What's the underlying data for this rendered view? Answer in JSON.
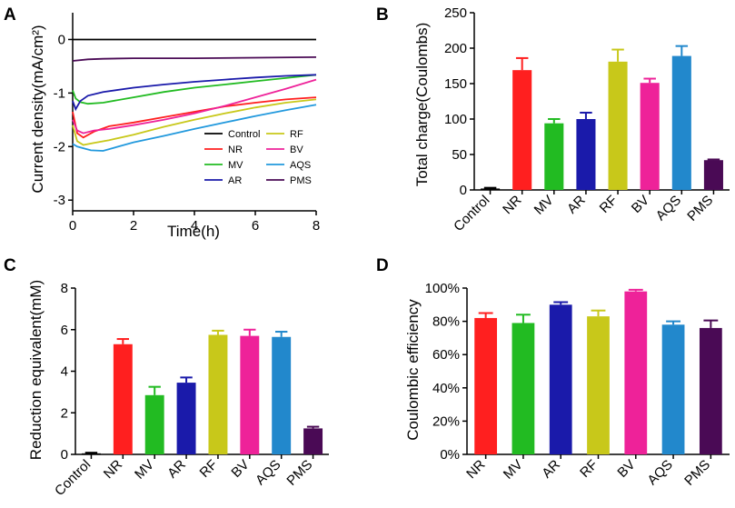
{
  "chart_data": [
    {
      "panel": "A",
      "type": "line",
      "xlabel": "Time(h)",
      "ylabel": "Current density(mA/cm²)",
      "xlim": [
        0,
        8
      ],
      "ylim": [
        -3.2,
        0.5
      ],
      "xticks": [
        0,
        2,
        4,
        6,
        8
      ],
      "yticks": [
        0,
        -1,
        -2,
        -3
      ],
      "legend_position": "bottom-right",
      "series": [
        {
          "name": "Control",
          "color": "#000000",
          "x": [
            0,
            1,
            2,
            4,
            6,
            8
          ],
          "y": [
            0,
            0,
            0,
            0,
            0,
            0
          ]
        },
        {
          "name": "NR",
          "color": "#ff1f1f",
          "x": [
            0,
            0.15,
            0.35,
            0.7,
            1.2,
            2,
            3,
            4,
            5,
            6,
            7,
            8
          ],
          "y": [
            -1.35,
            -1.75,
            -1.83,
            -1.72,
            -1.62,
            -1.55,
            -1.45,
            -1.35,
            -1.25,
            -1.18,
            -1.12,
            -1.08
          ]
        },
        {
          "name": "MV",
          "color": "#22bb22",
          "x": [
            0,
            0.1,
            0.25,
            0.5,
            1,
            2,
            3,
            4,
            5,
            6,
            7,
            8
          ],
          "y": [
            -0.95,
            -1.1,
            -1.17,
            -1.2,
            -1.18,
            -1.08,
            -0.98,
            -0.9,
            -0.84,
            -0.78,
            -0.72,
            -0.66
          ]
        },
        {
          "name": "AR",
          "color": "#1a1aaa",
          "x": [
            0,
            0.1,
            0.25,
            0.5,
            1,
            2,
            3,
            4,
            5,
            6,
            7,
            8
          ],
          "y": [
            -1.15,
            -1.3,
            -1.15,
            -1.05,
            -0.98,
            -0.9,
            -0.84,
            -0.79,
            -0.75,
            -0.71,
            -0.68,
            -0.66
          ]
        },
        {
          "name": "RF",
          "color": "#c8c81a",
          "x": [
            0,
            0.15,
            0.35,
            0.7,
            1.2,
            2,
            3,
            4,
            5,
            6,
            7,
            8
          ],
          "y": [
            -1.6,
            -1.9,
            -1.97,
            -1.93,
            -1.88,
            -1.78,
            -1.63,
            -1.5,
            -1.38,
            -1.27,
            -1.18,
            -1.12
          ]
        },
        {
          "name": "BV",
          "color": "#ee2299",
          "x": [
            0,
            0.15,
            0.35,
            0.7,
            1.2,
            2,
            3,
            4,
            5,
            6,
            7,
            8
          ],
          "y": [
            -1.5,
            -1.7,
            -1.75,
            -1.7,
            -1.67,
            -1.6,
            -1.5,
            -1.38,
            -1.24,
            -1.08,
            -0.92,
            -0.75
          ]
        },
        {
          "name": "AQS",
          "color": "#2299dd",
          "x": [
            0,
            0.15,
            0.35,
            0.6,
            1,
            1.5,
            2,
            3,
            4,
            5,
            6,
            7,
            8
          ],
          "y": [
            -1.95,
            -2.0,
            -2.03,
            -2.07,
            -2.08,
            -2.0,
            -1.92,
            -1.8,
            -1.67,
            -1.55,
            -1.43,
            -1.32,
            -1.22
          ]
        },
        {
          "name": "PMS",
          "color": "#4a0a55",
          "x": [
            0,
            0.5,
            1,
            2,
            4,
            6,
            8
          ],
          "y": [
            -0.4,
            -0.37,
            -0.36,
            -0.35,
            -0.35,
            -0.34,
            -0.33
          ]
        }
      ]
    },
    {
      "panel": "B",
      "type": "bar",
      "ylabel": "Total charge(Coulombs)",
      "ylim": [
        0,
        250
      ],
      "yticks": [
        0,
        50,
        100,
        150,
        200,
        250
      ],
      "categories": [
        "Control",
        "NR",
        "MV",
        "AR",
        "RF",
        "BV",
        "AQS",
        "PMS"
      ],
      "values": [
        2,
        169,
        94,
        100,
        181,
        151,
        189,
        42
      ],
      "errors": [
        1,
        17,
        6,
        9,
        17,
        6,
        14,
        1
      ],
      "colors": [
        "#000000",
        "#ff1f1f",
        "#22bb22",
        "#1a1aaa",
        "#c8c81a",
        "#ee2299",
        "#2288cc",
        "#4a0a55"
      ]
    },
    {
      "panel": "C",
      "type": "bar",
      "ylabel": "Reduction equivalent(mM)",
      "ylim": [
        0,
        8
      ],
      "yticks": [
        0,
        2,
        4,
        6,
        8
      ],
      "categories": [
        "Control",
        "NR",
        "MV",
        "AR",
        "RF",
        "BV",
        "AQS",
        "PMS"
      ],
      "values": [
        0.05,
        5.3,
        2.85,
        3.45,
        5.75,
        5.7,
        5.65,
        1.25
      ],
      "errors": [
        0.03,
        0.25,
        0.4,
        0.25,
        0.2,
        0.3,
        0.25,
        0.08
      ],
      "colors": [
        "#000000",
        "#ff1f1f",
        "#22bb22",
        "#1a1aaa",
        "#c8c81a",
        "#ee2299",
        "#2288cc",
        "#4a0a55"
      ]
    },
    {
      "panel": "D",
      "type": "bar",
      "ylabel": "Coulombic efficiency",
      "ylim": [
        0,
        100
      ],
      "yticks": [
        0,
        20,
        40,
        60,
        80,
        100
      ],
      "ytick_suffix": "%",
      "categories": [
        "NR",
        "MV",
        "AR",
        "RF",
        "BV",
        "AQS",
        "PMS"
      ],
      "values": [
        82,
        79,
        90,
        83,
        98,
        78,
        76
      ],
      "errors": [
        3,
        5,
        1.5,
        3.5,
        1,
        2,
        4.5
      ],
      "colors": [
        "#ff1f1f",
        "#22bb22",
        "#1a1aaa",
        "#c8c81a",
        "#ee2299",
        "#2288cc",
        "#4a0a55"
      ]
    }
  ]
}
